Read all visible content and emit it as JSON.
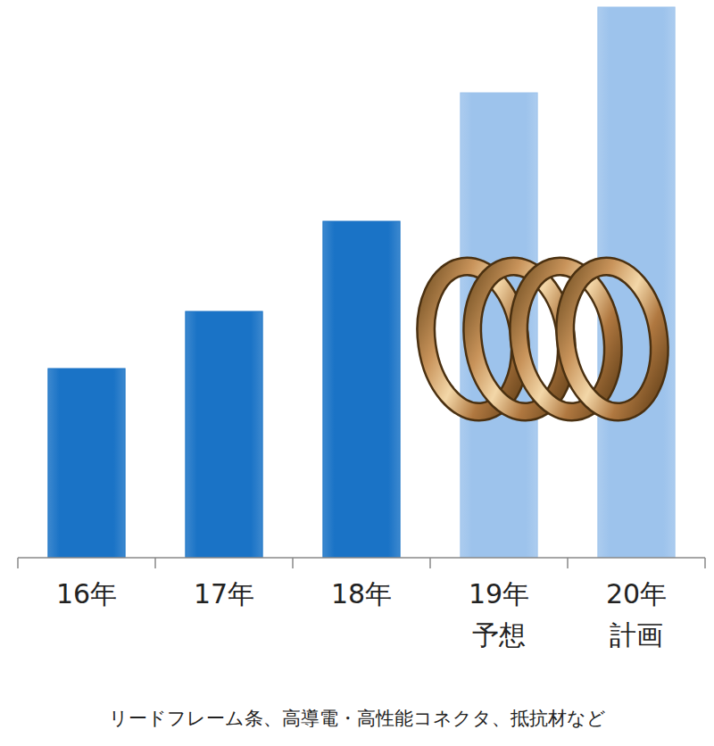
{
  "chart_data": {
    "type": "bar",
    "categories": [
      "16年",
      "17年",
      "18年",
      "19年\n予想",
      "20年\n計画"
    ],
    "values": [
      212,
      276,
      377,
      521,
      617
    ],
    "colors": [
      "#1a73c6",
      "#1a73c6",
      "#1a73c6",
      "#9dc3ec",
      "#9dc3ec"
    ],
    "ylim": [
      0,
      625
    ],
    "tick_labels": "x",
    "annotations": [
      "リードフレーム条、高導電・高性能コネクタ、抵抗材など"
    ]
  }
}
